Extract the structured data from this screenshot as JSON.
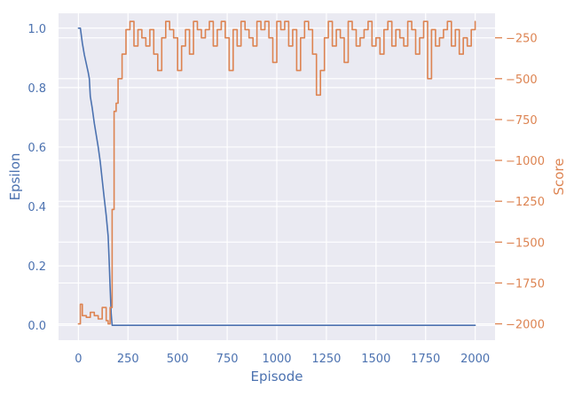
{
  "chart_data": {
    "type": "line",
    "title": "",
    "xlabel": "Episode",
    "ylabel_left": "Epsilon",
    "ylabel_right": "Score",
    "xlim": [
      -100,
      2100
    ],
    "ylim_left": [
      -0.05,
      1.05
    ],
    "ylim_right": [
      -2100,
      -100
    ],
    "x_ticks": [
      0,
      250,
      500,
      750,
      1000,
      1250,
      1500,
      1750,
      2000
    ],
    "x_tick_labels": [
      "0",
      "250",
      "500",
      "750",
      "1000",
      "1250",
      "1500",
      "1750",
      "2000"
    ],
    "y_left_ticks": [
      0.0,
      0.2,
      0.4,
      0.6,
      0.8,
      1.0
    ],
    "y_left_tick_labels": [
      "0.0",
      "0.2",
      "0.4",
      "0.6",
      "0.8",
      "1.0"
    ],
    "y_right_ticks": [
      -2000,
      -1750,
      -1500,
      -1250,
      -1000,
      -750,
      -500,
      -250
    ],
    "y_right_tick_labels": [
      "−2000",
      "−1750",
      "−1500",
      "−1250",
      "−1000",
      "−750",
      "−500",
      "−250"
    ],
    "grid": true,
    "legend": "none",
    "colors": {
      "epsilon": "#4c72b0",
      "score": "#dd8452",
      "background": "#eaeaf2",
      "grid": "#ffffff"
    },
    "series": [
      {
        "axis": "left",
        "x": [
          0,
          10,
          20,
          30,
          40,
          50,
          55,
          60,
          70,
          80,
          90,
          100,
          110,
          120,
          130,
          140,
          150,
          155,
          160,
          165,
          170,
          180,
          250,
          500,
          750,
          1000,
          1250,
          1500,
          1750,
          2000
        ],
        "values": [
          1.0,
          1.0,
          0.95,
          0.91,
          0.88,
          0.85,
          0.83,
          0.77,
          0.73,
          0.68,
          0.64,
          0.6,
          0.55,
          0.49,
          0.43,
          0.37,
          0.3,
          0.22,
          0.13,
          0.04,
          0.0,
          0.0,
          0.0,
          0.0,
          0.0,
          0.0,
          0.0,
          0.0,
          0.0,
          0.0
        ]
      },
      {
        "axis": "right",
        "x": [
          0,
          10,
          20,
          40,
          60,
          80,
          100,
          120,
          140,
          150,
          160,
          170,
          180,
          190,
          200,
          220,
          240,
          260,
          280,
          300,
          320,
          340,
          360,
          380,
          400,
          420,
          440,
          460,
          480,
          500,
          520,
          540,
          560,
          580,
          600,
          620,
          640,
          660,
          680,
          700,
          720,
          740,
          760,
          780,
          800,
          820,
          840,
          860,
          880,
          900,
          920,
          940,
          960,
          980,
          1000,
          1020,
          1040,
          1060,
          1080,
          1100,
          1120,
          1140,
          1160,
          1180,
          1200,
          1220,
          1240,
          1260,
          1280,
          1300,
          1320,
          1340,
          1360,
          1380,
          1400,
          1420,
          1440,
          1460,
          1480,
          1500,
          1520,
          1540,
          1560,
          1580,
          1600,
          1620,
          1640,
          1660,
          1680,
          1700,
          1720,
          1740,
          1760,
          1780,
          1800,
          1820,
          1840,
          1860,
          1880,
          1900,
          1920,
          1940,
          1960,
          1980,
          2000
        ],
        "values": [
          -2000,
          -1880,
          -1950,
          -1960,
          -1930,
          -1950,
          -1970,
          -1900,
          -1980,
          -2000,
          -1900,
          -1300,
          -700,
          -650,
          -500,
          -350,
          -200,
          -150,
          -300,
          -200,
          -250,
          -300,
          -200,
          -350,
          -450,
          -250,
          -150,
          -200,
          -250,
          -450,
          -300,
          -200,
          -350,
          -150,
          -200,
          -250,
          -200,
          -150,
          -300,
          -200,
          -150,
          -250,
          -450,
          -200,
          -300,
          -150,
          -200,
          -250,
          -300,
          -150,
          -200,
          -150,
          -250,
          -400,
          -150,
          -200,
          -150,
          -300,
          -200,
          -450,
          -250,
          -150,
          -200,
          -350,
          -600,
          -450,
          -250,
          -150,
          -300,
          -200,
          -250,
          -400,
          -150,
          -200,
          -300,
          -250,
          -200,
          -150,
          -300,
          -250,
          -350,
          -200,
          -150,
          -300,
          -200,
          -250,
          -300,
          -150,
          -200,
          -350,
          -250,
          -150,
          -500,
          -200,
          -300,
          -250,
          -200,
          -150,
          -300,
          -200,
          -350,
          -250,
          -300,
          -200,
          -150
        ]
      }
    ]
  }
}
